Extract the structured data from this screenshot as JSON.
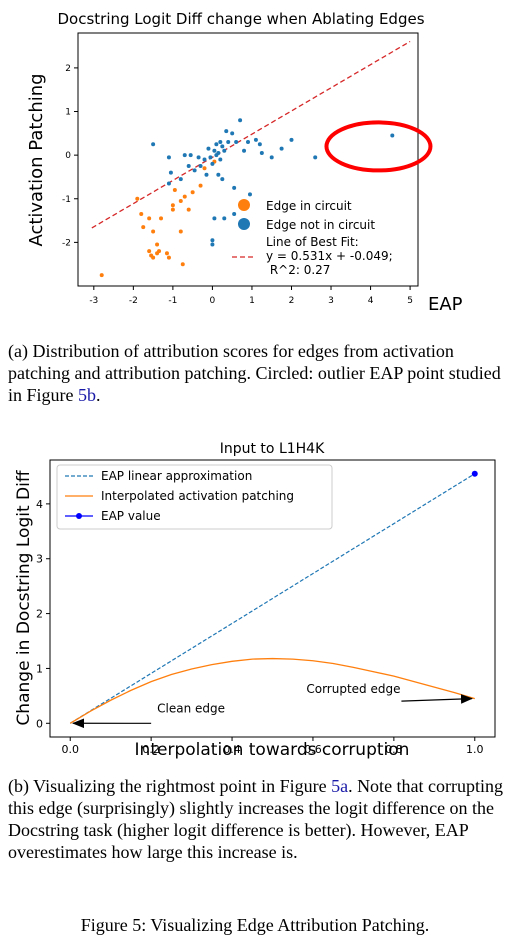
{
  "chart_data": [
    {
      "type": "scatter",
      "title": "Docstring Logit Diff change when Ablating Edges",
      "xlabel": "EAP",
      "ylabel": "Activation Patching",
      "xlim": [
        -3.4,
        5.2
      ],
      "ylim": [
        -3.0,
        2.8
      ],
      "xticks": [
        -3,
        -2,
        -1,
        0,
        1,
        2,
        3,
        4,
        5
      ],
      "yticks": [
        -2,
        -1,
        0,
        1,
        2
      ],
      "grid": false,
      "legend_placement": "bottom-right",
      "series": [
        {
          "name": "Edge in circuit",
          "color": "#ff7f0e",
          "points": [
            [
              -2.8,
              -2.75
            ],
            [
              -1.55,
              -2.3
            ],
            [
              -1.5,
              -2.35
            ],
            [
              -1.4,
              -2.25
            ],
            [
              -1.35,
              -2.2
            ],
            [
              -1.6,
              -2.2
            ],
            [
              -1.15,
              -2.25
            ],
            [
              -1.1,
              -2.35
            ],
            [
              -1.4,
              -2.05
            ],
            [
              -0.75,
              -2.5
            ],
            [
              -1.75,
              -1.65
            ],
            [
              -1.5,
              -1.75
            ],
            [
              -1.3,
              -1.45
            ],
            [
              -1.6,
              -1.45
            ],
            [
              -1.8,
              -1.35
            ],
            [
              -0.8,
              -1.75
            ],
            [
              -1.0,
              -1.15
            ],
            [
              -0.8,
              -1.05
            ],
            [
              -0.7,
              -0.95
            ],
            [
              -0.5,
              -0.85
            ],
            [
              -0.3,
              -0.7
            ],
            [
              -0.6,
              -1.25
            ],
            [
              -1.9,
              -1.0
            ],
            [
              -1.0,
              -1.25
            ],
            [
              -0.95,
              -0.8
            ],
            [
              -0.2,
              -0.3
            ],
            [
              0.05,
              -0.15
            ]
          ]
        },
        {
          "name": "Edge not in circuit",
          "color": "#1f77b4",
          "points": [
            [
              -1.5,
              0.25
            ],
            [
              -0.1,
              0.15
            ],
            [
              0.05,
              0.1
            ],
            [
              0.1,
              0.0
            ],
            [
              0.15,
              0.05
            ],
            [
              -0.05,
              -0.05
            ],
            [
              0.2,
              -0.1
            ],
            [
              0.0,
              -0.2
            ],
            [
              -0.2,
              -0.1
            ],
            [
              -0.3,
              -0.25
            ],
            [
              -0.45,
              -0.35
            ],
            [
              0.25,
              0.2
            ],
            [
              0.3,
              0.1
            ],
            [
              0.4,
              0.3
            ],
            [
              0.5,
              0.5
            ],
            [
              0.7,
              0.8
            ],
            [
              0.35,
              0.55
            ],
            [
              0.6,
              0.3
            ],
            [
              0.8,
              0.1
            ],
            [
              0.9,
              0.3
            ],
            [
              1.1,
              0.35
            ],
            [
              1.2,
              0.25
            ],
            [
              1.25,
              0.05
            ],
            [
              1.5,
              -0.05
            ],
            [
              1.75,
              0.15
            ],
            [
              2.0,
              0.35
            ],
            [
              2.6,
              -0.05
            ],
            [
              -0.6,
              -0.25
            ],
            [
              -0.7,
              0.0
            ],
            [
              -1.1,
              -0.05
            ],
            [
              -1.05,
              -0.4
            ],
            [
              -1.1,
              -0.65
            ],
            [
              -0.8,
              -0.55
            ],
            [
              -0.35,
              -0.05
            ],
            [
              0.15,
              -0.45
            ],
            [
              -0.15,
              -0.45
            ],
            [
              0.25,
              -0.55
            ],
            [
              0.55,
              -0.75
            ],
            [
              0.55,
              -1.35
            ],
            [
              0.95,
              -0.9
            ],
            [
              0.3,
              -1.45
            ],
            [
              0.0,
              -1.95
            ],
            [
              0.0,
              -2.05
            ],
            [
              0.05,
              -1.45
            ],
            [
              4.55,
              0.45
            ],
            [
              -0.55,
              0.0
            ],
            [
              0.1,
              0.25
            ],
            [
              0.2,
              0.3
            ]
          ]
        }
      ],
      "fit_line": {
        "name": "Line of Best Fit:\ny = 0.531x + -0.049;\n R^2: 0.27",
        "slope": 0.531,
        "intercept": -0.049,
        "color": "#d62728",
        "x_range": [
          -3.05,
          5.0
        ]
      },
      "annotation": {
        "type": "ellipse",
        "color": "#ff0000",
        "center": [
          4.2,
          0.2
        ]
      }
    },
    {
      "type": "line",
      "title": "Input to L1H4K",
      "xlabel": "Interpolation towards corruption",
      "ylabel": "Change in Docstring Logit Diff",
      "xlim": [
        -0.05,
        1.05
      ],
      "ylim": [
        -0.25,
        4.8
      ],
      "xticks": [
        0.0,
        0.2,
        0.4,
        0.6,
        0.8,
        1.0
      ],
      "yticks": [
        0,
        1,
        2,
        3,
        4
      ],
      "grid": false,
      "legend_placement": "top-left",
      "series": [
        {
          "name": "EAP linear approximation",
          "style": "dashed",
          "color": "#1f77b4",
          "x": [
            0.0,
            1.0
          ],
          "y": [
            0.0,
            4.55
          ]
        },
        {
          "name": "Interpolated activation patching",
          "style": "solid",
          "color": "#ff7f0e",
          "x": [
            0.0,
            0.05,
            0.1,
            0.15,
            0.2,
            0.25,
            0.3,
            0.35,
            0.4,
            0.45,
            0.5,
            0.55,
            0.6,
            0.65,
            0.7,
            0.75,
            0.8,
            0.85,
            0.9,
            0.95,
            1.0
          ],
          "y": [
            0.0,
            0.22,
            0.42,
            0.6,
            0.76,
            0.89,
            0.99,
            1.07,
            1.13,
            1.17,
            1.18,
            1.17,
            1.14,
            1.09,
            1.02,
            0.94,
            0.86,
            0.76,
            0.66,
            0.56,
            0.45
          ]
        },
        {
          "name": "EAP value",
          "style": "marker",
          "color": "#0000ff",
          "x": [
            1.0
          ],
          "y": [
            4.55
          ]
        }
      ],
      "annotations": [
        {
          "text": "Clean edge",
          "text_at": [
            0.2,
            0.2
          ],
          "arrow_to": [
            0.0,
            0.0
          ]
        },
        {
          "text": "Corrupted edge",
          "text_at": [
            0.7,
            0.55
          ],
          "arrow_to": [
            1.0,
            0.45
          ]
        }
      ]
    }
  ],
  "captions": {
    "a_label": "(a) Distribution of attribution scores for edges from activation patching and attribution patching. Circled: outlier EAP point studied in Figure ",
    "a_ref": "5b",
    "a_tail": ".",
    "b_label": "(b) Visualizing the rightmost point in Figure ",
    "b_ref": "5a",
    "b_tail": ". Note that corrupting this edge (surprisingly) slightly increases the logit difference on the Docstring task (higher logit difference is better). However, EAP overestimates how large this increase is.",
    "figure": "Figure 5: Visualizing Edge Attribution Patching."
  }
}
